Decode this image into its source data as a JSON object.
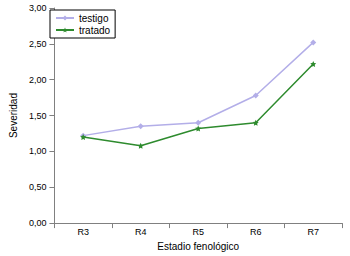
{
  "chart_data": {
    "type": "line",
    "x_label": "Estadio fenológico",
    "y_label": "Severidad",
    "categories": [
      "R3",
      "R4",
      "R5",
      "R6",
      "R7"
    ],
    "series": [
      {
        "name": "testigo",
        "color": "#b3aee8",
        "marker": "diamond",
        "values": [
          1.22,
          1.35,
          1.4,
          1.78,
          2.52
        ]
      },
      {
        "name": "tratado",
        "color": "#2e8b2e",
        "marker": "star",
        "values": [
          1.2,
          1.08,
          1.32,
          1.4,
          2.22
        ]
      }
    ],
    "ylim": [
      0,
      3
    ],
    "yticks": [
      {
        "value": 0,
        "label": "0,00"
      },
      {
        "value": 0.5,
        "label": "0,50"
      },
      {
        "value": 1,
        "label": "1,00"
      },
      {
        "value": 1.5,
        "label": "1,50"
      },
      {
        "value": 2,
        "label": "2,00"
      },
      {
        "value": 2.5,
        "label": "2,50"
      },
      {
        "value": 3,
        "label": "3,00"
      }
    ],
    "grid": false,
    "legend": "upper left"
  }
}
